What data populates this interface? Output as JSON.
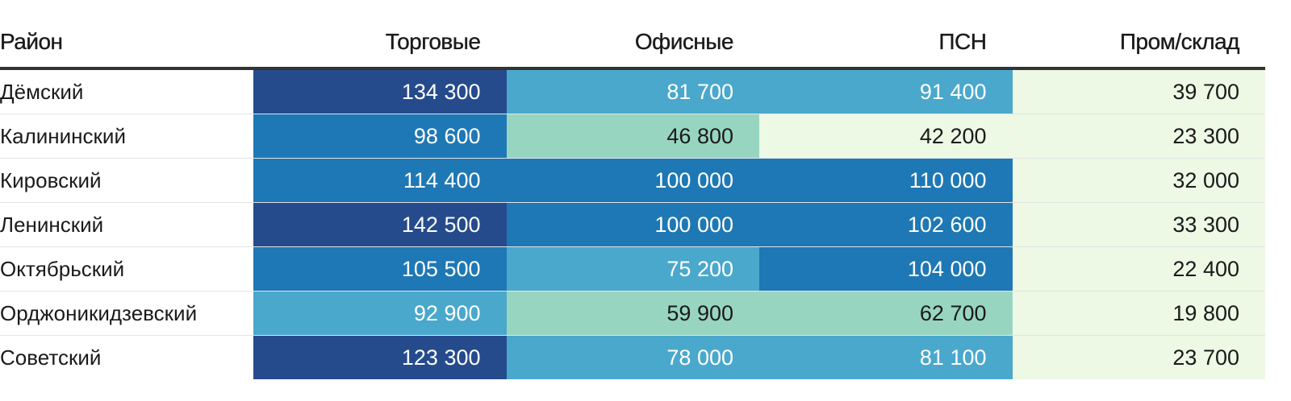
{
  "chart_data": {
    "type": "table",
    "columns": [
      "Район",
      "Торговые",
      "Офисные",
      "ПСН",
      "Пром/склад"
    ],
    "rows": [
      {
        "district": "Дёмский",
        "values": [
          "134 300",
          "81 700",
          "91 400",
          "39 700"
        ],
        "numbers": [
          134300,
          81700,
          91400,
          39700
        ]
      },
      {
        "district": "Калининский",
        "values": [
          "98 600",
          "46 800",
          "42 200",
          "23 300"
        ],
        "numbers": [
          98600,
          46800,
          42200,
          23300
        ]
      },
      {
        "district": "Кировский",
        "values": [
          "114 400",
          "100 000",
          "110 000",
          "32 000"
        ],
        "numbers": [
          114400,
          100000,
          110000,
          32000
        ]
      },
      {
        "district": "Ленинский",
        "values": [
          "142 500",
          "100 000",
          "102 600",
          "33 300"
        ],
        "numbers": [
          142500,
          100000,
          102600,
          33300
        ]
      },
      {
        "district": "Октябрьский",
        "values": [
          "105 500",
          "75 200",
          "104 000",
          "22 400"
        ],
        "numbers": [
          105500,
          75200,
          104000,
          22400
        ]
      },
      {
        "district": "Орджоникидзевский",
        "values": [
          "92 900",
          "59 900",
          "62 700",
          "19 800"
        ],
        "numbers": [
          92900,
          59900,
          62700,
          19800
        ]
      },
      {
        "district": "Советский",
        "values": [
          "123 300",
          "78 000",
          "81 100",
          "23 700"
        ],
        "numbers": [
          123300,
          78000,
          81100,
          23700
        ]
      }
    ],
    "color_scale": [
      {
        "min": 0,
        "max": 45000,
        "color": "#edf8e5",
        "text": "#1a1a1a"
      },
      {
        "min": 45000,
        "max": 75000,
        "color": "#98d5c1",
        "text": "#1a1a1a"
      },
      {
        "min": 75000,
        "max": 95000,
        "color": "#4aa8cc",
        "text": "#ffffff"
      },
      {
        "min": 95000,
        "max": 120000,
        "color": "#1e78b5",
        "text": "#ffffff"
      },
      {
        "min": 120000,
        "max": 1000000,
        "color": "#254b8c",
        "text": "#ffffff"
      }
    ]
  }
}
